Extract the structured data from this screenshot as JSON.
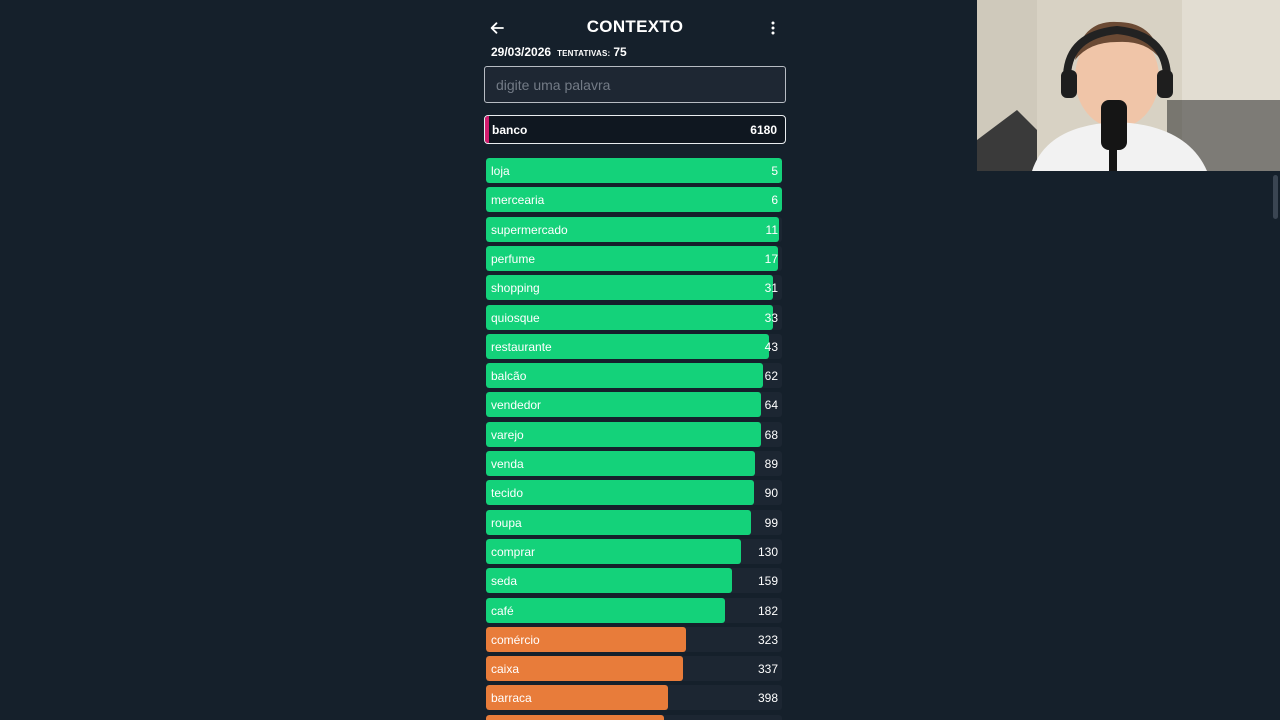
{
  "header": {
    "title": "CONTEXTO",
    "date": "29/03/2026",
    "tries_label": "TENTATIVAS:",
    "tries_value": "75"
  },
  "search": {
    "placeholder": "digite uma palavra",
    "value": ""
  },
  "current_guess": {
    "word": "banco",
    "rank": "6180",
    "accent_color": "#d11c6e"
  },
  "colors": {
    "green": "#14d27a",
    "orange": "#e87c3a",
    "track": "#1c2632",
    "background": "#15202b"
  },
  "guesses": [
    {
      "word": "loja",
      "rank": "5",
      "fill": 1.0,
      "color": "green"
    },
    {
      "word": "mercearia",
      "rank": "6",
      "fill": 1.0,
      "color": "green"
    },
    {
      "word": "supermercado",
      "rank": "11",
      "fill": 0.99,
      "color": "green"
    },
    {
      "word": "perfume",
      "rank": "17",
      "fill": 0.985,
      "color": "green"
    },
    {
      "word": "shopping",
      "rank": "31",
      "fill": 0.97,
      "color": "green"
    },
    {
      "word": "quiosque",
      "rank": "33",
      "fill": 0.97,
      "color": "green"
    },
    {
      "word": "restaurante",
      "rank": "43",
      "fill": 0.955,
      "color": "green"
    },
    {
      "word": "balcão",
      "rank": "62",
      "fill": 0.935,
      "color": "green"
    },
    {
      "word": "vendedor",
      "rank": "64",
      "fill": 0.93,
      "color": "green"
    },
    {
      "word": "varejo",
      "rank": "68",
      "fill": 0.928,
      "color": "green"
    },
    {
      "word": "venda",
      "rank": "89",
      "fill": 0.908,
      "color": "green"
    },
    {
      "word": "tecido",
      "rank": "90",
      "fill": 0.905,
      "color": "green"
    },
    {
      "word": "roupa",
      "rank": "99",
      "fill": 0.895,
      "color": "green"
    },
    {
      "word": "comprar",
      "rank": "130",
      "fill": 0.86,
      "color": "green"
    },
    {
      "word": "seda",
      "rank": "159",
      "fill": 0.83,
      "color": "green"
    },
    {
      "word": "café",
      "rank": "182",
      "fill": 0.808,
      "color": "green"
    },
    {
      "word": "comércio",
      "rank": "323",
      "fill": 0.675,
      "color": "orange"
    },
    {
      "word": "caixa",
      "rank": "337",
      "fill": 0.665,
      "color": "orange"
    },
    {
      "word": "barraca",
      "rank": "398",
      "fill": 0.615,
      "color": "orange"
    },
    {
      "word": "",
      "rank": "",
      "fill": 0.6,
      "color": "orange"
    }
  ]
}
